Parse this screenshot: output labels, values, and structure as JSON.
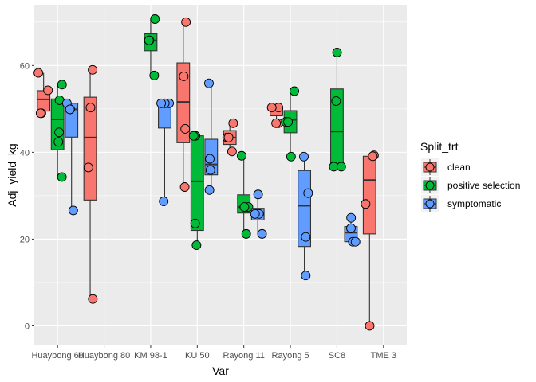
{
  "chart_data": {
    "type": "boxplot",
    "xlabel": "Var",
    "ylabel": "Adj_yield_kg",
    "ylim": [
      -4.5,
      74
    ],
    "yticks": [
      0,
      20,
      40,
      60
    ],
    "categories": [
      "Huaybong 60",
      "Huaybong 80",
      "KM 98-1",
      "KU 50",
      "Rayong 11",
      "Rayong 5",
      "SC8",
      "TME 3"
    ],
    "legend": {
      "title": "Split_trt",
      "position": "right",
      "entries": [
        "clean",
        "positive selection",
        "symptomatic"
      ]
    },
    "colors": {
      "clean": "#F8766D",
      "positive selection": "#00BA38",
      "symptomatic": "#619CFF",
      "panel": "#EBEBEB",
      "grid": "#FFFFFF"
    },
    "series": [
      {
        "name": "clean",
        "boxes": [
          {
            "category": "Huaybong 60",
            "min": 49,
            "q1": 49.5,
            "median": 52.2,
            "q3": 54.2,
            "max": 58.3,
            "points": [
              58.3,
              54.3,
              49,
              49
            ]
          },
          {
            "category": "Huaybong 80",
            "min": 6.2,
            "q1": 29,
            "median": 43.4,
            "q3": 52.7,
            "max": 59,
            "points": [
              59,
              50.3,
              36.5,
              6.2
            ]
          },
          {
            "category": "KU 50",
            "min": 32,
            "q1": 42.2,
            "median": 51.6,
            "q3": 60.6,
            "max": 70,
            "points": [
              70,
              57.5,
              45.4,
              32
            ]
          },
          {
            "category": "Rayong 11",
            "min": 40.2,
            "q1": 41.8,
            "median": 43.4,
            "q3": 45,
            "max": 46.7,
            "points": [
              46.7,
              43.4,
              43.4,
              40.2
            ]
          },
          {
            "category": "Rayong 5",
            "min": 46.7,
            "q1": 48.5,
            "median": 48.5,
            "q3": 50.3,
            "max": 50.3,
            "points": [
              50.3,
              50.3,
              46.7,
              46.7
            ]
          },
          {
            "category": "TME 3",
            "min": 0,
            "q1": 21.2,
            "median": 33.6,
            "q3": 39.1,
            "max": 39.3,
            "points": [
              39.3,
              39.1,
              28.1,
              0
            ]
          }
        ]
      },
      {
        "name": "positive selection",
        "boxes": [
          {
            "category": "Huaybong 60",
            "min": 34.3,
            "q1": 40.6,
            "median": 47.6,
            "q3": 52.3,
            "max": 55.6,
            "points": [
              55.6,
              52,
              44.6,
              42.4,
              34.3
            ]
          },
          {
            "category": "KM 98-1",
            "min": 57.7,
            "q1": 63.4,
            "median": 65.8,
            "q3": 67.3,
            "max": 70.7,
            "points": [
              70.7,
              65.8,
              65.8,
              57.7
            ]
          },
          {
            "category": "KU 50",
            "min": 18.6,
            "q1": 22,
            "median": 33.3,
            "q3": 43.8,
            "max": 43.8,
            "points": [
              43.8,
              43.8,
              23.6,
              18.6
            ]
          },
          {
            "category": "Rayong 11",
            "min": 21.2,
            "q1": 26,
            "median": 27.4,
            "q3": 30.2,
            "max": 39.2,
            "points": [
              39.2,
              27.4,
              27.4,
              21.2
            ]
          },
          {
            "category": "Rayong 5",
            "min": 39,
            "q1": 44.5,
            "median": 47.5,
            "q3": 49.6,
            "max": 54.1,
            "points": [
              54.1,
              47,
              47,
              39
            ]
          },
          {
            "category": "SC8",
            "min": 36.7,
            "q1": 36.7,
            "median": 44.8,
            "q3": 54.6,
            "max": 63,
            "points": [
              63,
              51.8,
              36.7,
              36.7
            ]
          }
        ]
      },
      {
        "name": "symptomatic",
        "boxes": [
          {
            "category": "Huaybong 60",
            "min": 26.6,
            "q1": 43.5,
            "median": 49.9,
            "q3": 51.3,
            "max": 51.3,
            "points": [
              51.3,
              49.9,
              49.9,
              26.6
            ]
          },
          {
            "category": "KM 98-1",
            "min": 28.7,
            "q1": 45.6,
            "median": 51.3,
            "q3": 51.3,
            "max": 51.3,
            "points": [
              51.3,
              51.3,
              51.3,
              28.7
            ]
          },
          {
            "category": "KU 50",
            "min": 31.3,
            "q1": 34.8,
            "median": 37.2,
            "q3": 43,
            "max": 55.9,
            "points": [
              55.9,
              38.5,
              35.9,
              31.3
            ]
          },
          {
            "category": "Rayong 11",
            "min": 21.2,
            "q1": 24.4,
            "median": 25.8,
            "q3": 27.1,
            "max": 30.3,
            "points": [
              30.3,
              25.8,
              25.8,
              21.2
            ]
          },
          {
            "category": "Rayong 5",
            "min": 11.6,
            "q1": 18.3,
            "median": 27.7,
            "q3": 35.8,
            "max": 39,
            "points": [
              39,
              30.6,
              20.5,
              11.6
            ]
          },
          {
            "category": "SC8",
            "min": 19.4,
            "q1": 19.4,
            "median": 21.5,
            "q3": 22.9,
            "max": 24.9,
            "points": [
              24.9,
              22.5,
              19.4,
              19.4
            ]
          }
        ]
      }
    ]
  }
}
